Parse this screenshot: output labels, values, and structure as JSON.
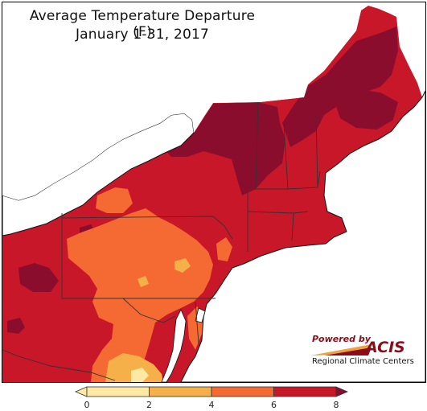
{
  "title": {
    "line1": "Average Temperature Departure (F)",
    "line2": "January 1-31, 2017"
  },
  "legend": {
    "ticks": [
      "0",
      "2",
      "4",
      "6",
      "8"
    ],
    "colors": [
      "#fde9a3",
      "#f6b04a",
      "#f46a32",
      "#c81728"
    ]
  },
  "logo": {
    "powered_by": "Powered by",
    "name": "ACIS",
    "subtitle": "Regional Climate Centers"
  },
  "palette": {
    "water": "#ffffff",
    "dark_red": "#8b0d2e",
    "red": "#c81728",
    "orange_red": "#f46a32",
    "orange": "#f6b04a",
    "light": "#fde9a3"
  }
}
